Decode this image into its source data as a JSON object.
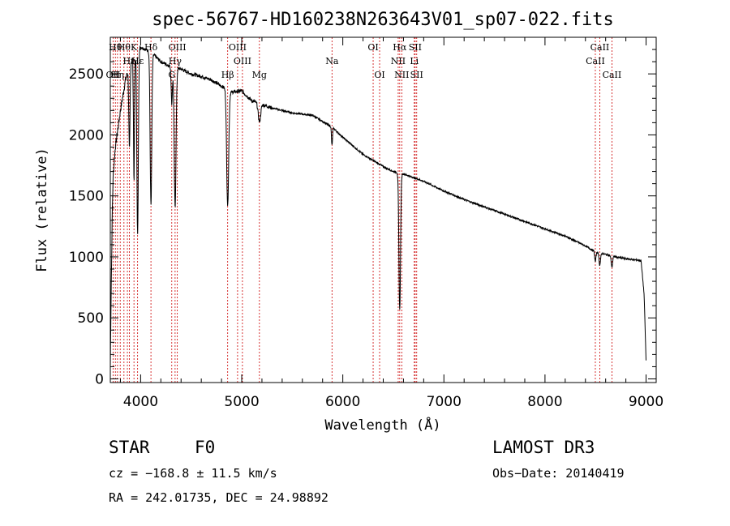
{
  "chart_data": {
    "type": "line",
    "title": "spec-56767-HD160238N263643V01_sp07-022.fits",
    "xlabel": "Wavelength (Å)",
    "ylabel": "Flux (relative)",
    "xlim": [
      3700,
      9100
    ],
    "ylim": [
      -30,
      2800
    ],
    "x_ticks": [
      4000,
      5000,
      6000,
      7000,
      8000,
      9000
    ],
    "y_ticks": [
      0,
      500,
      1000,
      1500,
      2000,
      2500
    ],
    "grid": false,
    "continuum": {
      "x": [
        3700,
        3710,
        3720,
        3730,
        3750,
        3800,
        3850,
        3900,
        3950,
        4000,
        4050,
        4100,
        4200,
        4300,
        4400,
        4500,
        4600,
        4700,
        4800,
        4900,
        5000,
        5100,
        5200,
        5300,
        5400,
        5500,
        5600,
        5700,
        5800,
        5900,
        6000,
        6100,
        6200,
        6300,
        6400,
        6500,
        6600,
        6700,
        6800,
        6900,
        7000,
        7200,
        7400,
        7600,
        7800,
        8000,
        8200,
        8400,
        8500,
        8600,
        8700,
        8800,
        8900,
        8950,
        8980,
        9000
      ],
      "y": [
        100,
        800,
        1400,
        1700,
        1900,
        2200,
        2450,
        2600,
        2650,
        2720,
        2700,
        2680,
        2600,
        2560,
        2540,
        2500,
        2480,
        2450,
        2400,
        2350,
        2360,
        2280,
        2250,
        2220,
        2200,
        2180,
        2170,
        2160,
        2110,
        2060,
        1980,
        1910,
        1840,
        1790,
        1740,
        1700,
        1680,
        1650,
        1620,
        1580,
        1540,
        1470,
        1410,
        1350,
        1290,
        1230,
        1170,
        1090,
        1040,
        1020,
        1000,
        985,
        975,
        970,
        700,
        150
      ]
    },
    "absorption_lines": [
      {
        "name": "H8",
        "center": 3889,
        "depth": 700,
        "width": 6
      },
      {
        "name": "CaII K",
        "center": 3934,
        "depth": 1000,
        "width": 5
      },
      {
        "name": "H epsilon",
        "center": 3970,
        "depth": 1500,
        "width": 7
      },
      {
        "name": "H delta",
        "center": 4102,
        "depth": 1250,
        "width": 8
      },
      {
        "name": "G band",
        "center": 4308,
        "depth": 300,
        "width": 6
      },
      {
        "name": "H gamma",
        "center": 4341,
        "depth": 1150,
        "width": 9
      },
      {
        "name": "H beta",
        "center": 4861,
        "depth": 950,
        "width": 10
      },
      {
        "name": "Mg",
        "center": 5175,
        "depth": 150,
        "width": 12
      },
      {
        "name": "Na",
        "center": 5893,
        "depth": 150,
        "width": 5
      },
      {
        "name": "H alpha",
        "center": 6563,
        "depth": 1120,
        "width": 8
      },
      {
        "name": "CaII 8498",
        "center": 8498,
        "depth": 80,
        "width": 6
      },
      {
        "name": "CaII 8542",
        "center": 8542,
        "depth": 100,
        "width": 7
      },
      {
        "name": "CaII 8662",
        "center": 8662,
        "depth": 90,
        "width": 7
      }
    ],
    "marker_lines": [
      {
        "wave": 3727,
        "label": "OII",
        "row": 2
      },
      {
        "wave": 3750,
        "label": "Hθ",
        "row": 0
      },
      {
        "wave": 3771,
        "label": "Hη",
        "row": 2
      },
      {
        "wave": 3798,
        "label": "",
        "row": -1
      },
      {
        "wave": 3835,
        "label": "Hθ",
        "row": 0
      },
      {
        "wave": 3869,
        "label": "",
        "row": -1
      },
      {
        "wave": 3889,
        "label": "Hη",
        "row": 1
      },
      {
        "wave": 3934,
        "label": "K",
        "row": 0
      },
      {
        "wave": 3970,
        "label": "Hε",
        "row": 1
      },
      {
        "wave": 4102,
        "label": "Hδ",
        "row": 0
      },
      {
        "wave": 4308,
        "label": "G",
        "row": 2
      },
      {
        "wave": 4341,
        "label": "Hγ",
        "row": 1
      },
      {
        "wave": 4363,
        "label": "OIII",
        "row": 0
      },
      {
        "wave": 4861,
        "label": "Hβ",
        "row": 2
      },
      {
        "wave": 4959,
        "label": "OIII",
        "row": 0
      },
      {
        "wave": 5007,
        "label": "OIII",
        "row": 1
      },
      {
        "wave": 5175,
        "label": "Mg",
        "row": 2
      },
      {
        "wave": 5893,
        "label": "Na",
        "row": 1
      },
      {
        "wave": 6300,
        "label": "OI",
        "row": 0
      },
      {
        "wave": 6364,
        "label": "OI",
        "row": 2
      },
      {
        "wave": 6548,
        "label": "NII",
        "row": 1
      },
      {
        "wave": 6563,
        "label": "Hα",
        "row": 0
      },
      {
        "wave": 6583,
        "label": "NII",
        "row": 2
      },
      {
        "wave": 6707,
        "label": "Li",
        "row": 1
      },
      {
        "wave": 6716,
        "label": "SII",
        "row": 0
      },
      {
        "wave": 6731,
        "label": "SII",
        "row": 2
      },
      {
        "wave": 8498,
        "label": "CaII",
        "row": 1
      },
      {
        "wave": 8542,
        "label": "CaII",
        "row": 0
      },
      {
        "wave": 8662,
        "label": "CaII",
        "row": 2
      }
    ]
  },
  "info": {
    "object_type": "STAR",
    "subclass": "F0",
    "survey": "LAMOST DR3",
    "cz": "cz = −168.8 ± 11.5 km/s",
    "obs_date": "Obs−Date: 20140419",
    "coords": "RA = 242.01735, DEC =  24.98892"
  },
  "colors": {
    "spectrum": "#000000",
    "marker": "#cc0000",
    "axis": "#000000"
  }
}
